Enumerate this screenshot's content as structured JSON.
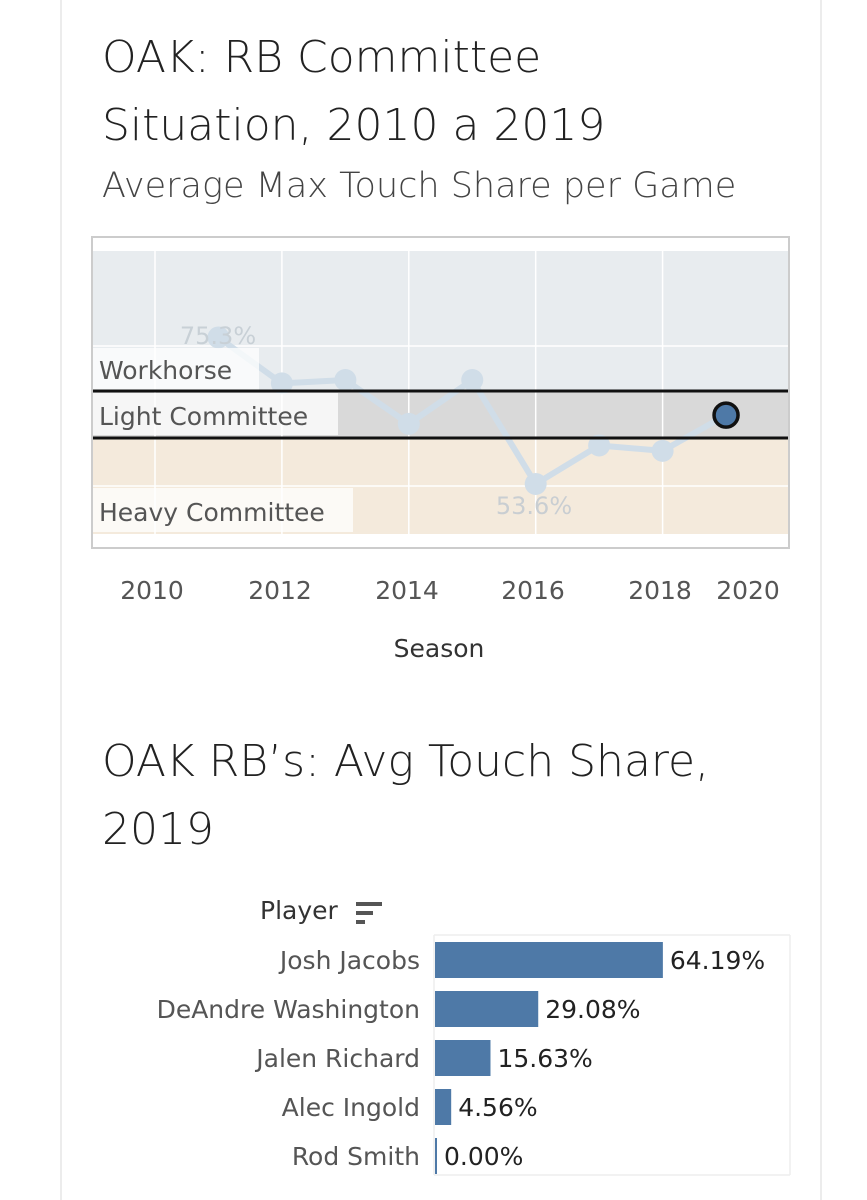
{
  "header": {
    "title_line1": "OAK: RB Committee",
    "title_line2": "Situation, 2010 a 2019",
    "subtitle": "Average Max Touch Share per Game"
  },
  "line_chart": {
    "x_axis_label": "Season",
    "x_ticks": [
      "2010",
      "2012",
      "2014",
      "2016",
      "2018",
      "2020"
    ],
    "band_labels": {
      "workhorse": "Workhorse",
      "light": "Light Committee",
      "heavy": "Heavy Committee"
    },
    "max_label": "75.3%",
    "min_label": "53.6%"
  },
  "bar_section": {
    "title_line1": "OAK RB’s: Avg Touch Share,",
    "title_line2": "2019",
    "column_header": "Player"
  },
  "colors": {
    "bar": "#4e79a7",
    "line": "#d0dde8",
    "workhorse_band": "#e8ecef",
    "light_band": "#d9d9d9",
    "heavy_band": "#f4eadc"
  },
  "chart_data": [
    {
      "type": "line",
      "title": "OAK: RB Committee Situation, 2010 a 2019",
      "subtitle": "Average Max Touch Share per Game",
      "xlabel": "Season",
      "ylabel": "",
      "x": [
        2011,
        2012,
        2013,
        2014,
        2015,
        2016,
        2017,
        2018,
        2019
      ],
      "values": [
        75.3,
        68.5,
        69.0,
        62.5,
        69.0,
        53.6,
        59.3,
        58.5,
        63.8
      ],
      "highlighted_x": 2019,
      "xlim": [
        2009,
        2021
      ],
      "ylim": [
        45,
        85
      ],
      "bands": [
        {
          "name": "Workhorse",
          "from": 67.5,
          "to": 84
        },
        {
          "name": "Light Committee",
          "from": 60.5,
          "to": 67.5
        },
        {
          "name": "Heavy Committee",
          "from": 47,
          "to": 60.5
        }
      ],
      "thresholds": [
        67.5,
        60.5
      ]
    },
    {
      "type": "bar",
      "title": "OAK RB’s: Avg Touch Share, 2019",
      "orientation": "horizontal",
      "categories": [
        "Josh Jacobs",
        "DeAndre Washington",
        "Jalen Richard",
        "Alec Ingold",
        "Rod Smith"
      ],
      "values": [
        64.19,
        29.08,
        15.63,
        4.56,
        0.0
      ],
      "value_labels": [
        "64.19%",
        "29.08%",
        "15.63%",
        "4.56%",
        "0.00%"
      ],
      "xlim": [
        0,
        100
      ]
    }
  ]
}
